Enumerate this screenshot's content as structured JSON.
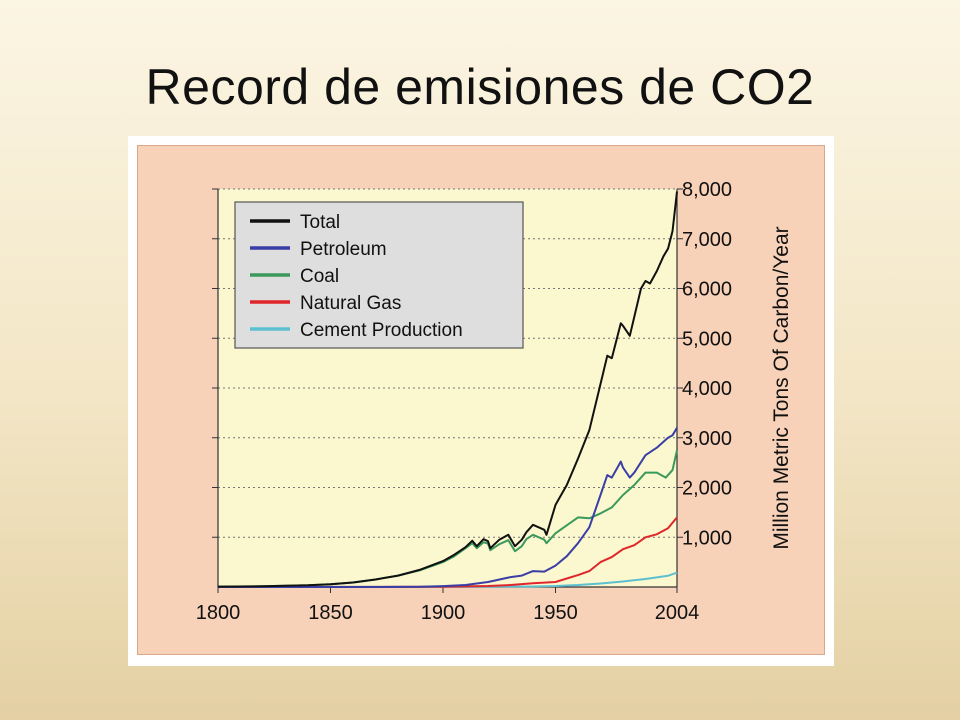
{
  "slide": {
    "title": "Record de emisiones de CO2"
  },
  "colors": {
    "plot_background": "#fbf7cf",
    "figure_background": "#f7d1b8",
    "legend_background": "#dedede",
    "Total": "#111111",
    "Petroleum": "#3a3fa6",
    "Coal": "#3a9a5a",
    "Natural Gas": "#e0262a",
    "Cement Production": "#5cc0d0"
  },
  "chart_data": {
    "type": "line",
    "title": "",
    "xlabel": "",
    "ylabel": "Million Metric Tons Of Carbon/Year",
    "y_axis_side": "right",
    "xlim": [
      1800,
      2004
    ],
    "ylim": [
      0,
      8000
    ],
    "x_ticks": [
      "1800",
      "1850",
      "1900",
      "1950",
      "2004"
    ],
    "y_ticks": [
      "1,000",
      "2,000",
      "3,000",
      "4,000",
      "5,000",
      "6,000",
      "7,000",
      "8,000"
    ],
    "grid": "horizontal dotted",
    "legend_position": "top-left",
    "series": [
      {
        "name": "Total",
        "points": [
          [
            1800,
            8
          ],
          [
            1820,
            15
          ],
          [
            1840,
            35
          ],
          [
            1850,
            54
          ],
          [
            1860,
            90
          ],
          [
            1870,
            150
          ],
          [
            1880,
            230
          ],
          [
            1890,
            350
          ],
          [
            1900,
            520
          ],
          [
            1905,
            650
          ],
          [
            1910,
            800
          ],
          [
            1913,
            930
          ],
          [
            1915,
            820
          ],
          [
            1918,
            960
          ],
          [
            1920,
            920
          ],
          [
            1921,
            780
          ],
          [
            1925,
            950
          ],
          [
            1929,
            1050
          ],
          [
            1932,
            820
          ],
          [
            1935,
            950
          ],
          [
            1937,
            1100
          ],
          [
            1940,
            1250
          ],
          [
            1945,
            1150
          ],
          [
            1946,
            1050
          ],
          [
            1950,
            1650
          ],
          [
            1955,
            2050
          ],
          [
            1960,
            2580
          ],
          [
            1965,
            3150
          ],
          [
            1970,
            4080
          ],
          [
            1973,
            4650
          ],
          [
            1975,
            4600
          ],
          [
            1979,
            5300
          ],
          [
            1980,
            5250
          ],
          [
            1983,
            5050
          ],
          [
            1988,
            6000
          ],
          [
            1990,
            6150
          ],
          [
            1992,
            6100
          ],
          [
            1995,
            6350
          ],
          [
            1998,
            6650
          ],
          [
            2000,
            6800
          ],
          [
            2002,
            7150
          ],
          [
            2004,
            7950
          ]
        ]
      },
      {
        "name": "Petroleum",
        "points": [
          [
            1800,
            0
          ],
          [
            1870,
            1
          ],
          [
            1890,
            5
          ],
          [
            1900,
            18
          ],
          [
            1910,
            40
          ],
          [
            1920,
            100
          ],
          [
            1930,
            200
          ],
          [
            1935,
            230
          ],
          [
            1940,
            320
          ],
          [
            1945,
            310
          ],
          [
            1950,
            430
          ],
          [
            1955,
            620
          ],
          [
            1960,
            880
          ],
          [
            1965,
            1200
          ],
          [
            1970,
            1850
          ],
          [
            1973,
            2250
          ],
          [
            1975,
            2200
          ],
          [
            1979,
            2520
          ],
          [
            1980,
            2400
          ],
          [
            1983,
            2200
          ],
          [
            1985,
            2300
          ],
          [
            1990,
            2650
          ],
          [
            1995,
            2800
          ],
          [
            2000,
            3000
          ],
          [
            2002,
            3050
          ],
          [
            2004,
            3200
          ]
        ]
      },
      {
        "name": "Coal",
        "points": [
          [
            1800,
            8
          ],
          [
            1820,
            15
          ],
          [
            1840,
            35
          ],
          [
            1850,
            54
          ],
          [
            1860,
            90
          ],
          [
            1870,
            150
          ],
          [
            1880,
            230
          ],
          [
            1890,
            340
          ],
          [
            1900,
            500
          ],
          [
            1905,
            620
          ],
          [
            1910,
            780
          ],
          [
            1913,
            880
          ],
          [
            1915,
            780
          ],
          [
            1918,
            900
          ],
          [
            1920,
            870
          ],
          [
            1921,
            740
          ],
          [
            1925,
            860
          ],
          [
            1929,
            940
          ],
          [
            1932,
            720
          ],
          [
            1935,
            820
          ],
          [
            1937,
            960
          ],
          [
            1940,
            1050
          ],
          [
            1945,
            950
          ],
          [
            1946,
            880
          ],
          [
            1950,
            1080
          ],
          [
            1955,
            1240
          ],
          [
            1960,
            1400
          ],
          [
            1965,
            1380
          ],
          [
            1970,
            1480
          ],
          [
            1975,
            1600
          ],
          [
            1980,
            1850
          ],
          [
            1985,
            2050
          ],
          [
            1988,
            2200
          ],
          [
            1990,
            2300
          ],
          [
            1995,
            2300
          ],
          [
            1999,
            2200
          ],
          [
            2002,
            2350
          ],
          [
            2004,
            2750
          ]
        ]
      },
      {
        "name": "Natural Gas",
        "points": [
          [
            1800,
            0
          ],
          [
            1900,
            5
          ],
          [
            1920,
            20
          ],
          [
            1930,
            40
          ],
          [
            1940,
            75
          ],
          [
            1950,
            100
          ],
          [
            1955,
            170
          ],
          [
            1960,
            240
          ],
          [
            1965,
            320
          ],
          [
            1970,
            500
          ],
          [
            1975,
            600
          ],
          [
            1980,
            760
          ],
          [
            1985,
            840
          ],
          [
            1990,
            1000
          ],
          [
            1995,
            1060
          ],
          [
            2000,
            1180
          ],
          [
            2004,
            1400
          ]
        ]
      },
      {
        "name": "Cement Production",
        "points": [
          [
            1800,
            0
          ],
          [
            1920,
            5
          ],
          [
            1940,
            10
          ],
          [
            1950,
            20
          ],
          [
            1960,
            40
          ],
          [
            1970,
            70
          ],
          [
            1980,
            110
          ],
          [
            1990,
            160
          ],
          [
            2000,
            225
          ],
          [
            2004,
            290
          ]
        ]
      }
    ]
  }
}
